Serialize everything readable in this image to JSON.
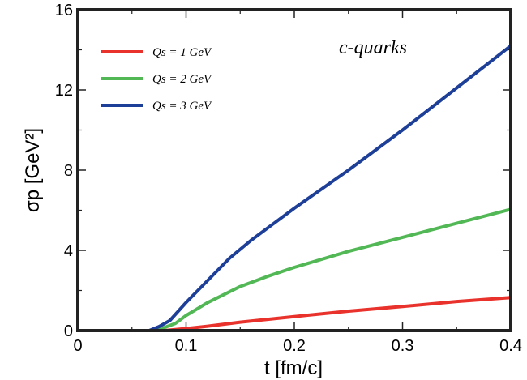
{
  "chart_data": {
    "type": "line",
    "title": "",
    "xlabel": "t [fm/c]",
    "ylabel": "σp [GeV²]",
    "xlim": [
      0,
      0.4
    ],
    "ylim": [
      0,
      16
    ],
    "xticks": [
      "0",
      "0.1",
      "0.2",
      "0.3",
      "0.4"
    ],
    "yticks": [
      "0",
      "4",
      "8",
      "12",
      "16"
    ],
    "annotation": "c-quarks",
    "legend_position": "top-left",
    "series": [
      {
        "name": "Qs = 1 GeV",
        "color": "#e8322b",
        "x": [
          0.0,
          0.066,
          0.08,
          0.1,
          0.12,
          0.15,
          0.2,
          0.25,
          0.3,
          0.35,
          0.4
        ],
        "y": [
          0.0,
          0.0,
          0.0,
          0.1,
          0.22,
          0.42,
          0.7,
          0.97,
          1.2,
          1.45,
          1.65
        ]
      },
      {
        "name": "Qs = 2 GeV",
        "color": "#52b755",
        "x": [
          0.0,
          0.066,
          0.075,
          0.09,
          0.1,
          0.12,
          0.15,
          0.175,
          0.2,
          0.25,
          0.3,
          0.35,
          0.4
        ],
        "y": [
          0.0,
          0.0,
          0.05,
          0.35,
          0.75,
          1.4,
          2.2,
          2.7,
          3.15,
          3.95,
          4.65,
          5.35,
          6.05
        ]
      },
      {
        "name": "Qs = 3 GeV",
        "color": "#1e3f98",
        "x": [
          0.0,
          0.066,
          0.075,
          0.085,
          0.1,
          0.12,
          0.14,
          0.16,
          0.18,
          0.2,
          0.25,
          0.3,
          0.35,
          0.4
        ],
        "y": [
          0.0,
          0.0,
          0.2,
          0.5,
          1.4,
          2.5,
          3.6,
          4.5,
          5.3,
          6.1,
          8.0,
          10.0,
          12.1,
          14.2
        ]
      }
    ]
  }
}
